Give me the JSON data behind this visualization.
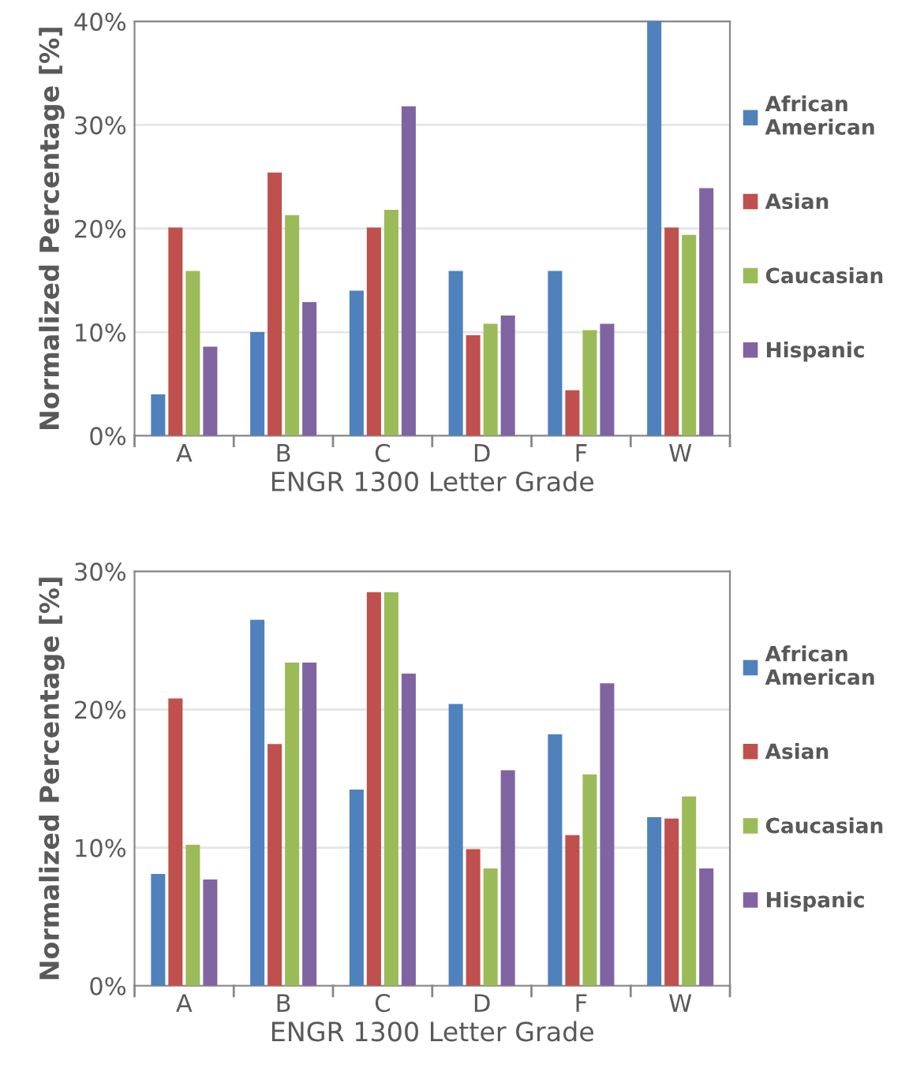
{
  "chart_data": [
    {
      "type": "bar",
      "categories": [
        "A",
        "B",
        "C",
        "D",
        "F",
        "W"
      ],
      "xlabel": "ENGR 1300 Letter Grade",
      "ylabel": "Normalized Percentage [%]",
      "ylim": [
        0,
        40
      ],
      "yticks": [
        {
          "value": 0,
          "label": "0%"
        },
        {
          "value": 10,
          "label": "10%"
        },
        {
          "value": 20,
          "label": "20%"
        },
        {
          "value": 30,
          "label": "30%"
        },
        {
          "value": 40,
          "label": "40%"
        }
      ],
      "grid": "y",
      "legend": "right",
      "series": [
        {
          "name": "African American",
          "color": "#4f81bd",
          "values": [
            4.0,
            10.0,
            14.0,
            15.9,
            15.9,
            40.0
          ]
        },
        {
          "name": "Asian",
          "color": "#c0504d",
          "values": [
            20.1,
            25.4,
            20.1,
            9.7,
            4.4,
            20.1
          ]
        },
        {
          "name": "Caucasian",
          "color": "#9bbb59",
          "values": [
            15.9,
            21.3,
            21.8,
            10.8,
            10.2,
            19.4
          ]
        },
        {
          "name": "Hispanic",
          "color": "#8064a2",
          "values": [
            8.6,
            12.9,
            31.8,
            11.6,
            10.8,
            23.9
          ]
        }
      ]
    },
    {
      "type": "bar",
      "categories": [
        "A",
        "B",
        "C",
        "D",
        "F",
        "W"
      ],
      "xlabel": "ENGR 1300 Letter Grade",
      "ylabel": "Normalized Percentage [%]",
      "ylim": [
        0,
        30
      ],
      "yticks": [
        {
          "value": 0,
          "label": "0%"
        },
        {
          "value": 10,
          "label": "10%"
        },
        {
          "value": 20,
          "label": "20%"
        },
        {
          "value": 30,
          "label": "30%"
        }
      ],
      "grid": "y",
      "legend": "right",
      "series": [
        {
          "name": "African American",
          "color": "#4f81bd",
          "values": [
            8.1,
            26.5,
            14.2,
            20.4,
            18.2,
            12.2
          ]
        },
        {
          "name": "Asian",
          "color": "#c0504d",
          "values": [
            20.8,
            17.5,
            28.5,
            9.9,
            10.9,
            12.1
          ]
        },
        {
          "name": "Caucasian",
          "color": "#9bbb59",
          "values": [
            10.2,
            23.4,
            28.5,
            8.5,
            15.3,
            13.7
          ]
        },
        {
          "name": "Hispanic",
          "color": "#8064a2",
          "values": [
            7.7,
            23.4,
            22.6,
            15.6,
            21.9,
            8.5
          ]
        }
      ]
    }
  ]
}
